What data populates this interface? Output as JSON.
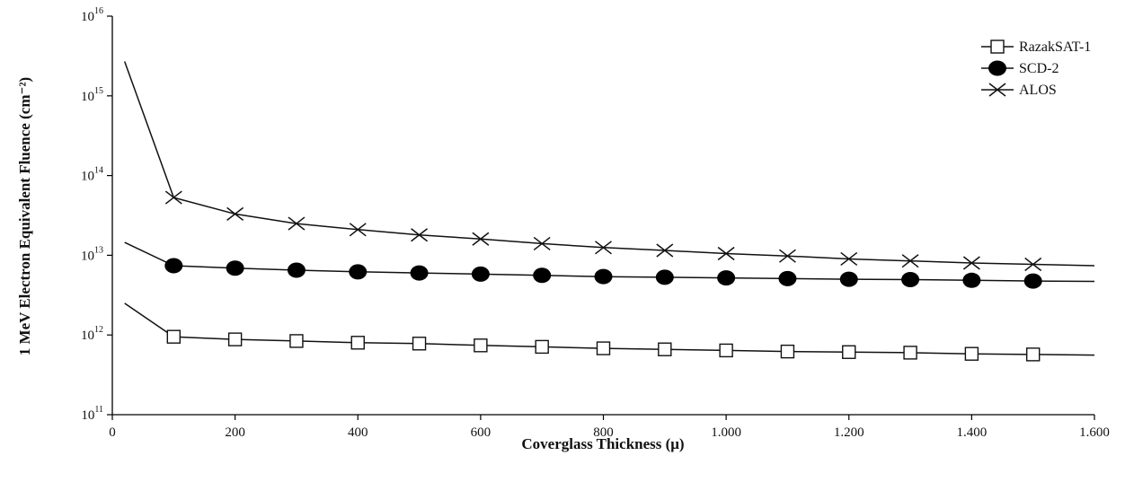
{
  "chart_data": {
    "type": "line",
    "xlabel": "Coverglass Thickness (μ)",
    "ylabel": "1 MeV Electron Equivalent Fluence (cm⁻²)",
    "xlim": [
      0,
      1600
    ],
    "ylim_exp": [
      11,
      16
    ],
    "y_scale": "log",
    "x_ticks": [
      {
        "value": 0,
        "label": "0"
      },
      {
        "value": 200,
        "label": "200"
      },
      {
        "value": 400,
        "label": "400"
      },
      {
        "value": 600,
        "label": "600"
      },
      {
        "value": 800,
        "label": "800"
      },
      {
        "value": 1000,
        "label": "1.000"
      },
      {
        "value": 1200,
        "label": "1.200"
      },
      {
        "value": 1400,
        "label": "1.400"
      },
      {
        "value": 1600,
        "label": "1.600"
      }
    ],
    "y_ticks": [
      {
        "exp": 11,
        "base": "10",
        "sup": "11"
      },
      {
        "exp": 12,
        "base": "10",
        "sup": "12"
      },
      {
        "exp": 13,
        "base": "10",
        "sup": "13"
      },
      {
        "exp": 14,
        "base": "10",
        "sup": "14"
      },
      {
        "exp": 15,
        "base": "10",
        "sup": "15"
      },
      {
        "exp": 16,
        "base": "10",
        "sup": "16"
      }
    ],
    "grid": false,
    "legend_position": "top-right",
    "series": [
      {
        "name": "RazakSAT-1",
        "marker": "square-open",
        "line_x": [
          20,
          100,
          200,
          300,
          400,
          500,
          600,
          700,
          800,
          900,
          1000,
          1100,
          1200,
          1300,
          1400,
          1500,
          1600
        ],
        "line_y": [
          2500000000000.0,
          950000000000.0,
          880000000000.0,
          840000000000.0,
          800000000000.0,
          780000000000.0,
          740000000000.0,
          710000000000.0,
          680000000000.0,
          660000000000.0,
          640000000000.0,
          620000000000.0,
          610000000000.0,
          600000000000.0,
          580000000000.0,
          570000000000.0,
          560000000000.0
        ],
        "marker_x": [
          100,
          200,
          300,
          400,
          500,
          600,
          700,
          800,
          900,
          1000,
          1100,
          1200,
          1300,
          1400,
          1500
        ],
        "marker_y": [
          950000000000.0,
          880000000000.0,
          840000000000.0,
          800000000000.0,
          780000000000.0,
          740000000000.0,
          710000000000.0,
          680000000000.0,
          660000000000.0,
          640000000000.0,
          620000000000.0,
          610000000000.0,
          600000000000.0,
          580000000000.0,
          570000000000.0
        ]
      },
      {
        "name": "SCD-2",
        "marker": "circle-filled",
        "line_x": [
          20,
          100,
          200,
          300,
          400,
          500,
          600,
          700,
          800,
          900,
          1000,
          1100,
          1200,
          1300,
          1400,
          1500,
          1600
        ],
        "line_y": [
          14500000000000.0,
          7400000000000.0,
          6900000000000.0,
          6500000000000.0,
          6200000000000.0,
          6000000000000.0,
          5800000000000.0,
          5600000000000.0,
          5400000000000.0,
          5300000000000.0,
          5200000000000.0,
          5100000000000.0,
          5000000000000.0,
          4950000000000.0,
          4850000000000.0,
          4750000000000.0,
          4700000000000.0
        ],
        "marker_x": [
          100,
          200,
          300,
          400,
          500,
          600,
          700,
          800,
          900,
          1000,
          1100,
          1200,
          1300,
          1400,
          1500
        ],
        "marker_y": [
          7400000000000.0,
          6900000000000.0,
          6500000000000.0,
          6200000000000.0,
          6000000000000.0,
          5800000000000.0,
          5600000000000.0,
          5400000000000.0,
          5300000000000.0,
          5200000000000.0,
          5100000000000.0,
          5000000000000.0,
          4950000000000.0,
          4850000000000.0,
          4750000000000.0
        ]
      },
      {
        "name": "ALOS",
        "marker": "x-cross",
        "line_x": [
          20,
          100,
          200,
          300,
          400,
          500,
          600,
          700,
          800,
          900,
          1000,
          1100,
          1200,
          1300,
          1400,
          1500,
          1600
        ],
        "line_y": [
          2700000000000000.0,
          53000000000000.0,
          33000000000000.0,
          25000000000000.0,
          21000000000000.0,
          18000000000000.0,
          16000000000000.0,
          14000000000000.0,
          12500000000000.0,
          11500000000000.0,
          10500000000000.0,
          9800000000000.0,
          9000000000000.0,
          8500000000000.0,
          8000000000000.0,
          7700000000000.0,
          7400000000000.0
        ],
        "marker_x": [
          100,
          200,
          300,
          400,
          500,
          600,
          700,
          800,
          900,
          1000,
          1100,
          1200,
          1300,
          1400,
          1500
        ],
        "marker_y": [
          53000000000000.0,
          33000000000000.0,
          25000000000000.0,
          21000000000000.0,
          18000000000000.0,
          16000000000000.0,
          14000000000000.0,
          12500000000000.0,
          11500000000000.0,
          10500000000000.0,
          9800000000000.0,
          9000000000000.0,
          8500000000000.0,
          8000000000000.0,
          7700000000000.0
        ]
      }
    ]
  }
}
